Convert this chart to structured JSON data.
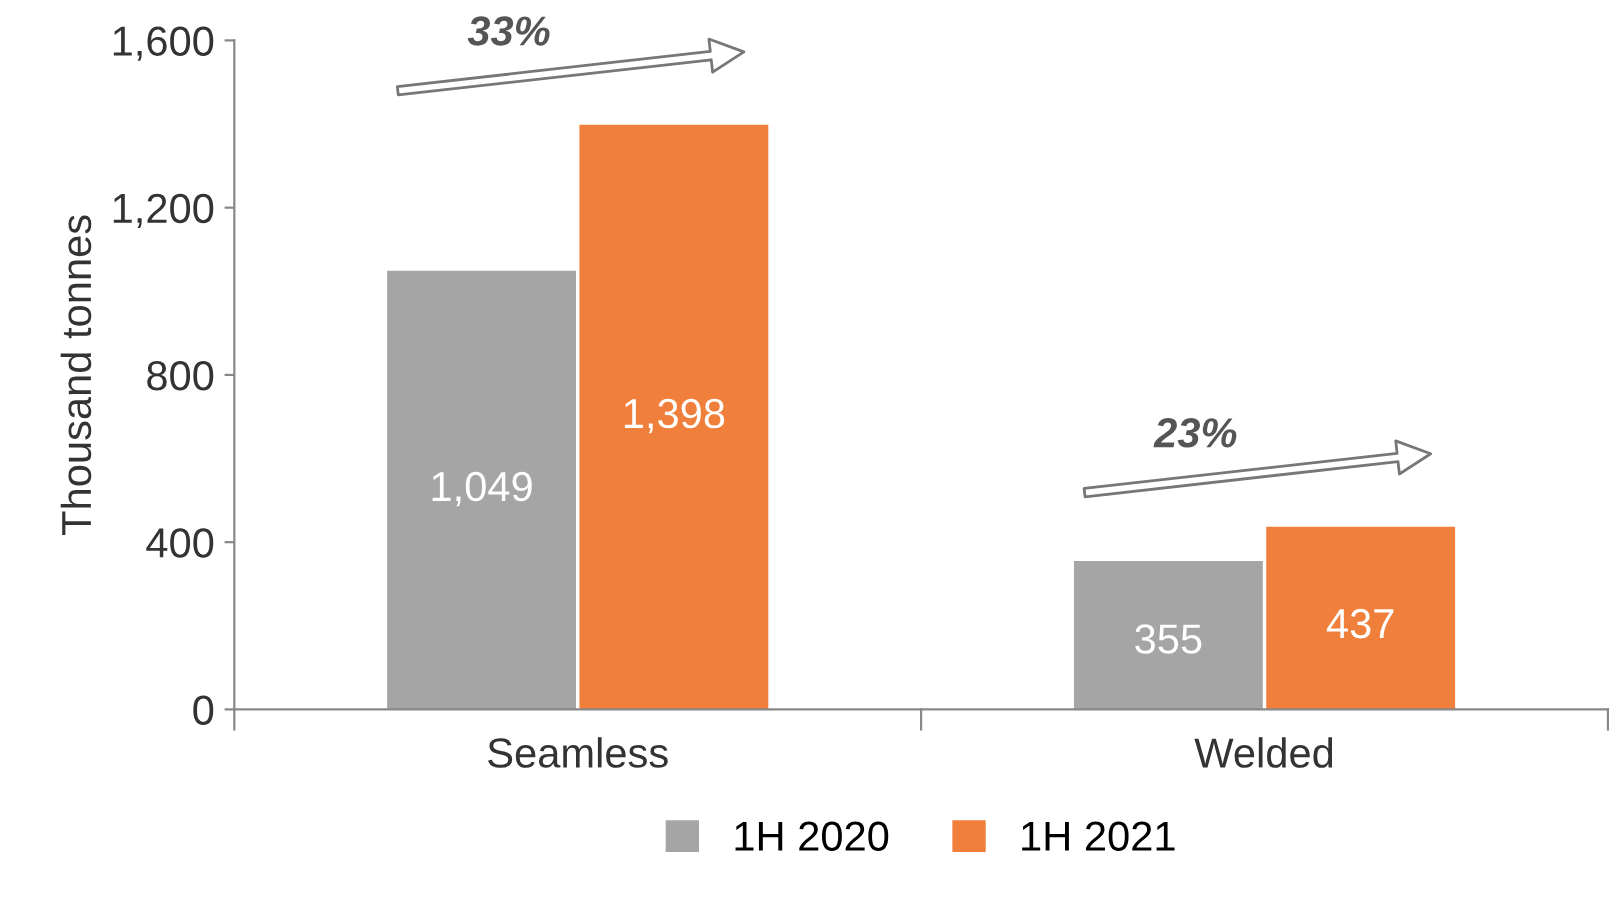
{
  "chart_data": {
    "type": "bar",
    "ylabel": "Thousand tonnes",
    "categories": [
      "Seamless",
      "Welded"
    ],
    "series": [
      {
        "name": "1H 2020",
        "color": "#a5a5a5",
        "values": [
          1049,
          355
        ],
        "value_labels": [
          "1,049",
          "355"
        ]
      },
      {
        "name": "1H 2021",
        "color": "#f07f3c",
        "values": [
          1398,
          437
        ],
        "value_labels": [
          "1,398",
          "437"
        ]
      }
    ],
    "ylim": [
      0,
      1600
    ],
    "yticks": [
      0,
      {
        "value": 400,
        "label": "400"
      },
      {
        "value": 800,
        "label": "800"
      },
      {
        "value": 1200,
        "label": "1,200"
      },
      {
        "value": 1600,
        "label": "1,600"
      }
    ],
    "grid": false,
    "legend": "bottom",
    "annotations": [
      "33%",
      "23%"
    ]
  }
}
